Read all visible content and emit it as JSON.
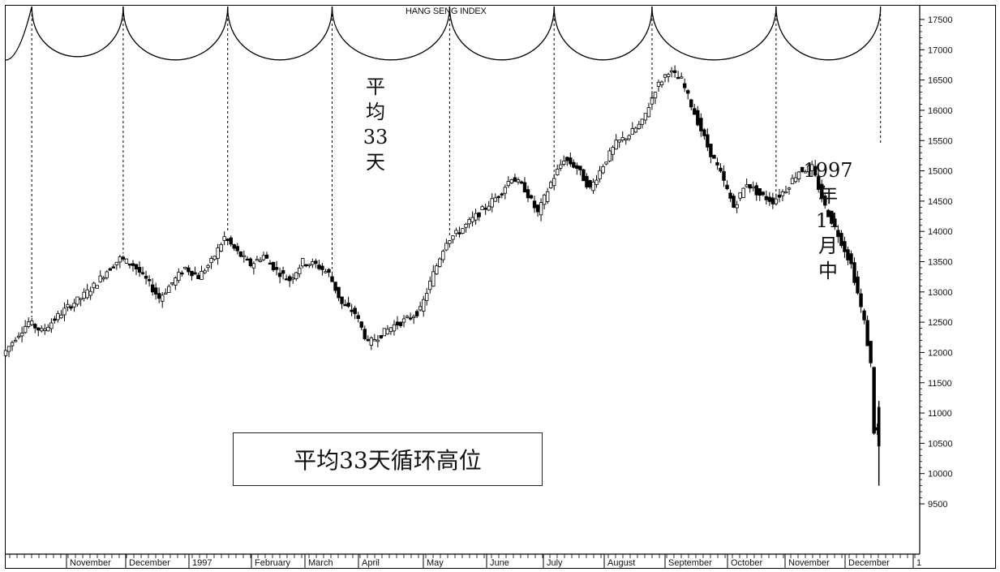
{
  "chart_data": {
    "type": "candlestick",
    "title": "HANG SENG INDEX",
    "ylim": [
      9000,
      17700
    ],
    "y_ticks": [
      9500,
      10000,
      10500,
      11000,
      11500,
      12000,
      12500,
      13000,
      13500,
      14000,
      14500,
      15000,
      15500,
      16000,
      16500,
      17000,
      17500
    ],
    "x_labels": [
      "November",
      "December",
      "1997",
      "February",
      "March",
      "April",
      "May",
      "June",
      "July",
      "August",
      "September",
      "October",
      "November",
      "December",
      "1"
    ],
    "price_path": [
      [
        0,
        11950
      ],
      [
        4,
        12250
      ],
      [
        8,
        12500
      ],
      [
        12,
        12350
      ],
      [
        16,
        12550
      ],
      [
        20,
        12750
      ],
      [
        24,
        12900
      ],
      [
        28,
        13100
      ],
      [
        32,
        13350
      ],
      [
        36,
        13550
      ],
      [
        40,
        13450
      ],
      [
        44,
        13200
      ],
      [
        48,
        12900
      ],
      [
        52,
        13150
      ],
      [
        56,
        13400
      ],
      [
        60,
        13250
      ],
      [
        64,
        13500
      ],
      [
        68,
        13900
      ],
      [
        72,
        13650
      ],
      [
        76,
        13450
      ],
      [
        80,
        13600
      ],
      [
        84,
        13350
      ],
      [
        88,
        13200
      ],
      [
        92,
        13500
      ],
      [
        96,
        13450
      ],
      [
        100,
        13300
      ],
      [
        104,
        12800
      ],
      [
        108,
        12650
      ],
      [
        112,
        12150
      ],
      [
        116,
        12300
      ],
      [
        120,
        12450
      ],
      [
        124,
        12550
      ],
      [
        128,
        12700
      ],
      [
        132,
        13300
      ],
      [
        136,
        13850
      ],
      [
        140,
        14000
      ],
      [
        144,
        14200
      ],
      [
        148,
        14400
      ],
      [
        152,
        14600
      ],
      [
        156,
        14900
      ],
      [
        160,
        14700
      ],
      [
        164,
        14300
      ],
      [
        168,
        14800
      ],
      [
        172,
        15200
      ],
      [
        176,
        15050
      ],
      [
        180,
        14700
      ],
      [
        184,
        15100
      ],
      [
        188,
        15450
      ],
      [
        192,
        15600
      ],
      [
        196,
        15800
      ],
      [
        200,
        16350
      ],
      [
        204,
        16650
      ],
      [
        208,
        16500
      ],
      [
        212,
        15950
      ],
      [
        216,
        15400
      ],
      [
        220,
        14950
      ],
      [
        224,
        14400
      ],
      [
        228,
        14800
      ],
      [
        232,
        14600
      ],
      [
        236,
        14500
      ],
      [
        240,
        14700
      ],
      [
        244,
        15000
      ],
      [
        248,
        15050
      ],
      [
        252,
        14400
      ],
      [
        256,
        13950
      ],
      [
        260,
        13450
      ],
      [
        264,
        12500
      ],
      [
        266,
        11800
      ],
      [
        267,
        10700
      ]
    ],
    "cycle_highs_x": [
      8,
      36,
      68,
      100,
      136,
      168,
      198,
      236,
      268
    ],
    "cycle_labels": [
      {
        "text": "平\n均\n33\n天"
      },
      {
        "text": "1997\n年\n11\n月\n中"
      }
    ],
    "annotation_box": "平均33天循环高位"
  }
}
